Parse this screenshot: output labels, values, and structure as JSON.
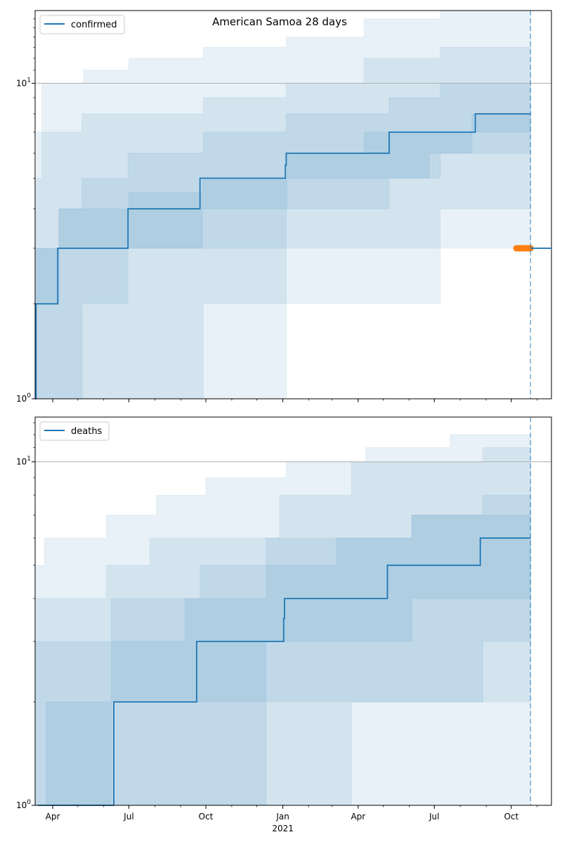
{
  "figure": {
    "title": "American Samoa 28 days"
  },
  "colors": {
    "series": "#1f77b4",
    "band": "#1f77b4",
    "observed": "#ff7f0e",
    "hline": "#b0b0b0"
  },
  "chart_data": [
    {
      "type": "line",
      "name": "confirmed",
      "x_axis_type": "date",
      "xlim": [
        "2020-03-11",
        "2021-11-18"
      ],
      "yscale": "log",
      "ylim": [
        1,
        17
      ],
      "y_ticks": [
        {
          "value": 1,
          "base": "10",
          "exp": "0"
        },
        {
          "value": 10,
          "base": "10",
          "exp": "1"
        }
      ],
      "x_ticks": [
        {
          "date": "2020-04-01",
          "label": "Apr"
        },
        {
          "date": "2020-07-01",
          "label": "Jul"
        },
        {
          "date": "2020-10-01",
          "label": "Oct"
        },
        {
          "date": "2021-01-01",
          "label": "Jan",
          "sublabel": "2021"
        },
        {
          "date": "2021-04-01",
          "label": "Apr"
        },
        {
          "date": "2021-07-01",
          "label": "Jul"
        },
        {
          "date": "2021-10-01",
          "label": "Oct"
        }
      ],
      "reference_line": 10,
      "forecast_start": "2021-10-24",
      "legend": {
        "label": "confirmed",
        "position": "upper left"
      },
      "series": {
        "x": [
          "2020-03-11",
          "2020-03-12",
          "2020-04-07",
          "2020-06-29",
          "2020-06-30",
          "2020-09-24",
          "2021-01-04",
          "2021-01-05",
          "2021-05-08",
          "2021-08-19",
          "2021-10-24"
        ],
        "y": [
          1,
          2,
          3,
          3,
          4,
          5,
          5.5,
          6,
          7,
          8,
          8
        ]
      },
      "bands": [
        {
          "x": [
            "2020-03-11",
            "2020-03-13",
            "2020-04-09",
            "2020-07-01",
            "2020-09-27",
            "2021-01-06",
            "2021-04-08",
            "2021-06-25",
            "2021-08-15",
            "2021-10-24"
          ],
          "lower": [
            1,
            2,
            3,
            3,
            4,
            5,
            5,
            6,
            7,
            7
          ],
          "upper": [
            2,
            3,
            4,
            4.5,
            5,
            6,
            7,
            7,
            8,
            8.5
          ]
        },
        {
          "x": [
            "2020-03-11",
            "2020-04-08",
            "2020-05-06",
            "2020-06-30",
            "2020-09-28",
            "2021-01-05",
            "2021-05-08",
            "2021-07-08",
            "2021-10-24"
          ],
          "lower": [
            1,
            1,
            2,
            3,
            3,
            4,
            5,
            6,
            7
          ],
          "upper": [
            3,
            4,
            5,
            6,
            7,
            8,
            9,
            10,
            11
          ]
        },
        {
          "x": [
            "2020-03-11",
            "2020-03-13",
            "2020-05-06",
            "2020-06-30",
            "2020-09-28",
            "2021-01-05",
            "2021-04-08",
            "2021-07-08",
            "2021-10-24"
          ],
          "lower": [
            1,
            1,
            1,
            1,
            2,
            3,
            3,
            4,
            4
          ],
          "upper": [
            4,
            7,
            8,
            8,
            9,
            10,
            12,
            13,
            14
          ]
        },
        {
          "x": [
            "2020-03-11",
            "2020-03-19",
            "2020-05-08",
            "2020-07-01",
            "2020-09-28",
            "2021-01-05",
            "2021-04-08",
            "2021-07-08",
            "2021-10-24"
          ],
          "lower": [
            1,
            1,
            1,
            1,
            1,
            2,
            2,
            3,
            3
          ],
          "upper": [
            5,
            10,
            11,
            12,
            13,
            14,
            16,
            17,
            17
          ]
        }
      ],
      "observed": {
        "x_start": "2021-10-07",
        "x_end": "2021-10-24",
        "y": 3
      }
    },
    {
      "type": "line",
      "name": "deaths",
      "x_axis_type": "date",
      "xlim": [
        "2020-03-11",
        "2021-11-18"
      ],
      "yscale": "log",
      "ylim": [
        1,
        13.5
      ],
      "y_ticks": [
        {
          "value": 1,
          "base": "10",
          "exp": "0"
        },
        {
          "value": 10,
          "base": "10",
          "exp": "1"
        }
      ],
      "x_ticks": [
        {
          "date": "2020-04-01",
          "label": "Apr"
        },
        {
          "date": "2020-07-01",
          "label": "Jul"
        },
        {
          "date": "2020-10-01",
          "label": "Oct"
        },
        {
          "date": "2021-01-01",
          "label": "Jan",
          "sublabel": "2021"
        },
        {
          "date": "2021-04-01",
          "label": "Apr"
        },
        {
          "date": "2021-07-01",
          "label": "Jul"
        },
        {
          "date": "2021-10-01",
          "label": "Oct"
        }
      ],
      "reference_line": 10,
      "forecast_start": "2021-10-24",
      "legend": {
        "label": "deaths",
        "position": "upper left"
      },
      "series": {
        "x": [
          "2020-03-14",
          "2020-06-12",
          "2020-06-13",
          "2020-09-20",
          "2021-01-02",
          "2021-01-03",
          "2021-05-06",
          "2021-08-25",
          "2021-10-24"
        ],
        "y": [
          1,
          1,
          2,
          3,
          3.5,
          4,
          5,
          6,
          6
        ]
      },
      "bands": [
        {
          "x": [
            "2020-03-11",
            "2020-03-24",
            "2020-06-10",
            "2020-09-06",
            "2020-12-12",
            "2021-03-06",
            "2021-06-04",
            "2021-10-24"
          ],
          "lower": [
            1,
            1,
            2,
            2,
            3,
            3,
            4,
            4
          ],
          "upper": [
            1,
            2,
            3,
            4,
            5,
            6,
            7,
            7
          ]
        },
        {
          "x": [
            "2020-03-11",
            "2020-06-10",
            "2020-09-24",
            "2020-12-12",
            "2021-06-04",
            "2021-08-28",
            "2021-10-24"
          ],
          "lower": [
            1,
            1,
            1,
            2,
            2,
            3,
            3
          ],
          "upper": [
            3,
            4,
            5,
            6,
            7,
            8,
            8
          ]
        },
        {
          "x": [
            "2020-03-11",
            "2020-03-13",
            "2020-06-04",
            "2020-07-26",
            "2020-12-28",
            "2021-03-24",
            "2021-08-28",
            "2021-10-24"
          ],
          "lower": [
            1,
            1,
            1,
            1,
            1,
            2,
            2,
            2
          ],
          "upper": [
            3,
            4,
            5,
            6,
            8,
            10,
            11,
            12
          ]
        },
        {
          "x": [
            "2020-03-11",
            "2020-03-22",
            "2020-06-04",
            "2020-08-03",
            "2020-10-01",
            "2021-01-05",
            "2021-04-10",
            "2021-07-20",
            "2021-10-24"
          ],
          "lower": [
            1,
            1,
            1,
            1,
            1,
            1,
            1,
            1,
            1
          ],
          "upper": [
            5,
            6,
            7,
            8,
            9,
            10,
            11,
            12,
            13.5
          ]
        }
      ]
    }
  ]
}
